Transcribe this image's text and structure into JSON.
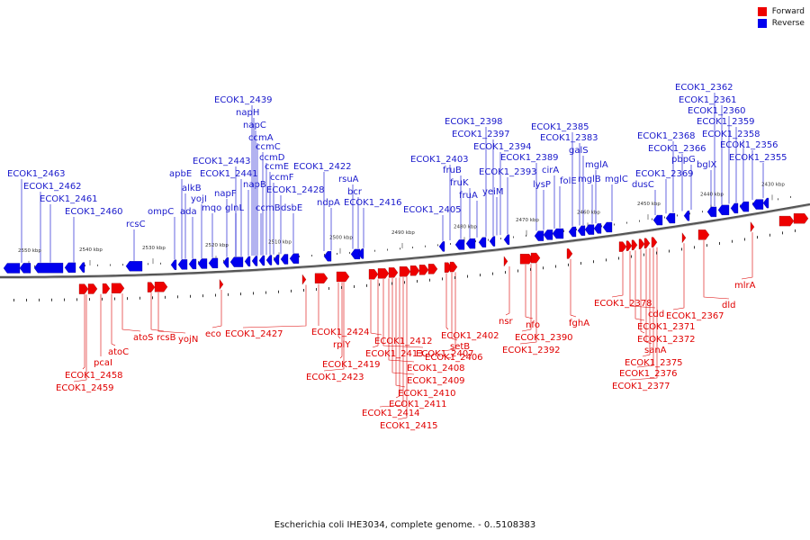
{
  "legend": {
    "forward_label": "Forward",
    "reverse_label": "Reverse",
    "forward_color": "#ee0000",
    "reverse_color": "#0000ee"
  },
  "caption": "Escherichia coli IHE3034, complete genome. - 0..5108383",
  "ticks": [
    "2550 kbp",
    "2540 kbp",
    "2530 kbp",
    "2520 kbp",
    "2510 kbp",
    "2500 kbp",
    "2490 kbp",
    "2480 kbp",
    "2470 kbp",
    "2460 kbp",
    "2450 kbp",
    "2440 kbp",
    "2430 kbp"
  ],
  "reverse_genes": [
    "ECOK1_2463",
    "ECOK1_2462",
    "ECOK1_2461",
    "ECOK1_2460",
    "rcsC",
    "ompC",
    "apbE",
    "alkB",
    "ada",
    "yojI",
    "mqo",
    "napF",
    "glnL",
    "ECOK1_2443",
    "ECOK1_2441",
    "napB",
    "ECOK1_2439",
    "napH",
    "napC",
    "ccmA",
    "ccmB",
    "ccmC",
    "ccmD",
    "ccmE",
    "ccmF",
    "ECOK1_2428",
    "dsbE",
    "ECOK1_2422",
    "ndpA",
    "rsuA",
    "bcr",
    "ECOK1_2416",
    "ECOK1_2405",
    "ECOK1_2403",
    "fruB",
    "fruK",
    "fruA",
    "ECOK1_2398",
    "ECOK1_2397",
    "yeiM",
    "ECOK1_2394",
    "ECOK1_2393",
    "ECOK1_2389",
    "lysP",
    "cirA",
    "folE",
    "ECOK1_2385",
    "ECOK1_2383",
    "galS",
    "mglB",
    "mglA",
    "mglC",
    "dusC",
    "ECOK1_2369",
    "ECOK1_2368",
    "ECOK1_2366",
    "pbpG",
    "bglX",
    "ECOK1_2362",
    "ECOK1_2361",
    "ECOK1_2360",
    "ECOK1_2359",
    "ECOK1_2358",
    "ECOK1_2356",
    "ECOK1_2355"
  ],
  "forward_genes": [
    "ECOK1_2458",
    "ECOK1_2459",
    "pcaI",
    "atoC",
    "atoS",
    "rcsB",
    "yojN",
    "eco",
    "ECOK1_2427",
    "ECOK1_2424",
    "rplY",
    "ECOK1_2419",
    "ECOK1_2423",
    "ECOK1_2412",
    "ECOK1_2413",
    "ECOK1_2407",
    "ECOK1_2408",
    "ECOK1_2409",
    "ECOK1_2410",
    "ECOK1_2411",
    "ECOK1_2414",
    "ECOK1_2415",
    "ECOK1_2402",
    "setB",
    "ECOK1_2406",
    "nsr",
    "nfo",
    "ECOK1_2390",
    "ECOK1_2392",
    "fghA",
    "ECOK1_2378",
    "cdd",
    "ECOK1_2371",
    "ECOK1_2372",
    "sanA",
    "ECOK1_2375",
    "ECOK1_2376",
    "ECOK1_2377",
    "ECOK1_2367",
    "dld",
    "mlrA"
  ]
}
